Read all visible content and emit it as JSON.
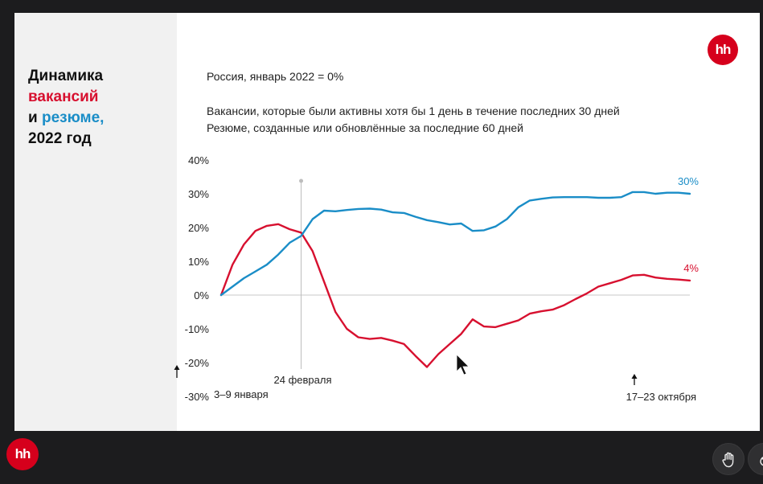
{
  "slide": {
    "title_line1": "Динамика",
    "title_line2": "вакансий",
    "title_line3_prefix": "и",
    "title_line3_highlight": "резюме,",
    "title_line4": "2022 год",
    "logo_text": "hh",
    "subtitle": "Россия, январь 2022 = 0%",
    "note_vacancies": "Вакансии, которые были активны хотя бы 1 день в течение последних 30 дней",
    "note_resumes": "Резюме, созданные или обновлённые за последние 60 дней"
  },
  "chart_data": {
    "type": "line",
    "y_ticks": [
      "40%",
      "30%",
      "20%",
      "10%",
      "0%",
      "-10%",
      "-20%",
      "-30%"
    ],
    "ylim": [
      -30,
      40
    ],
    "x_label_start": "3–9 января",
    "x_label_event": "24 февраля",
    "x_label_end": "17–23 октября",
    "event_week": 7,
    "series": [
      {
        "key": "vacancies",
        "color": "#d7102f",
        "end_label": "4%",
        "values": [
          0,
          9,
          15,
          19,
          20.5,
          21,
          19.5,
          18.5,
          13,
          4,
          -5,
          -10,
          -12.5,
          -13,
          -12.7,
          -13.5,
          -14.5,
          -18,
          -21.3,
          -17.5,
          -14.5,
          -11.5,
          -7.2,
          -9.3,
          -9.5,
          -8.5,
          -7.5,
          -5.5,
          -4.8,
          -4.3,
          -3,
          -1.2,
          0.5,
          2.5,
          3.5,
          4.5,
          5.8,
          6,
          5.2,
          4.8,
          4.6,
          4.3
        ]
      },
      {
        "key": "resumes",
        "color": "#1a8dc7",
        "end_label": "30%",
        "values": [
          0,
          2.5,
          5,
          7,
          9,
          12,
          15.5,
          17.5,
          22.5,
          25,
          24.8,
          25.2,
          25.5,
          25.6,
          25.3,
          24.5,
          24.3,
          23.2,
          22.2,
          21.6,
          20.9,
          21.2,
          19,
          19.2,
          20.3,
          22.5,
          26,
          28,
          28.5,
          28.9,
          29,
          29,
          29,
          28.8,
          28.8,
          29,
          30.5,
          30.5,
          30,
          30.3,
          30.3,
          30
        ]
      }
    ]
  },
  "overlay": {
    "bottom_logo_text": "hh",
    "raise_hand_icon": "hand-icon",
    "reaction_icon": "flame-icon"
  }
}
